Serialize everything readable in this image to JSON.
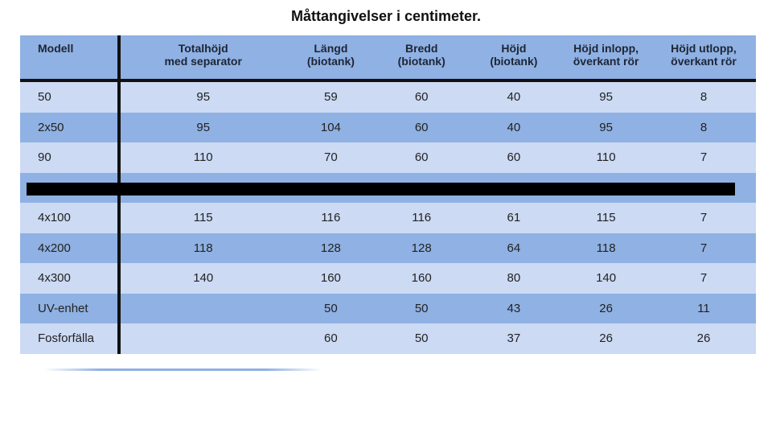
{
  "title": "Måttangivelser i centimeter.",
  "columns": [
    [
      "Modell",
      ""
    ],
    [
      "Totalhöjd",
      "med separator"
    ],
    [
      "Längd",
      "(biotank)"
    ],
    [
      "Bredd",
      "(biotank)"
    ],
    [
      "Höjd",
      "(biotank)"
    ],
    [
      "Höjd inlopp,",
      "överkant rör"
    ],
    [
      "Höjd utlopp,",
      "överkant rör"
    ]
  ],
  "rows": [
    {
      "shade": "light",
      "cells": [
        "50",
        "95",
        "59",
        "60",
        "40",
        "95",
        "8"
      ]
    },
    {
      "shade": "dark",
      "cells": [
        "2x50",
        "95",
        "104",
        "60",
        "40",
        "95",
        "8"
      ]
    },
    {
      "shade": "light",
      "cells": [
        "90",
        "110",
        "70",
        "60",
        "60",
        "110",
        "7"
      ]
    },
    {
      "shade": "dark",
      "cells": [
        "",
        "",
        "",
        "",
        "",
        "",
        ""
      ]
    },
    {
      "shade": "light",
      "cells": [
        "4x100",
        "115",
        "116",
        "116",
        "61",
        "115",
        "7"
      ]
    },
    {
      "shade": "dark",
      "cells": [
        "4x200",
        "118",
        "128",
        "128",
        "64",
        "118",
        "7"
      ]
    },
    {
      "shade": "light",
      "cells": [
        "4x300",
        "140",
        "160",
        "160",
        "80",
        "140",
        "7"
      ]
    },
    {
      "shade": "dark",
      "cells": [
        "UV-enhet",
        "",
        "50",
        "50",
        "43",
        "26",
        "11"
      ]
    },
    {
      "shade": "light",
      "cells": [
        "Fosforfälla",
        "",
        "60",
        "50",
        "37",
        "26",
        "26"
      ]
    }
  ]
}
